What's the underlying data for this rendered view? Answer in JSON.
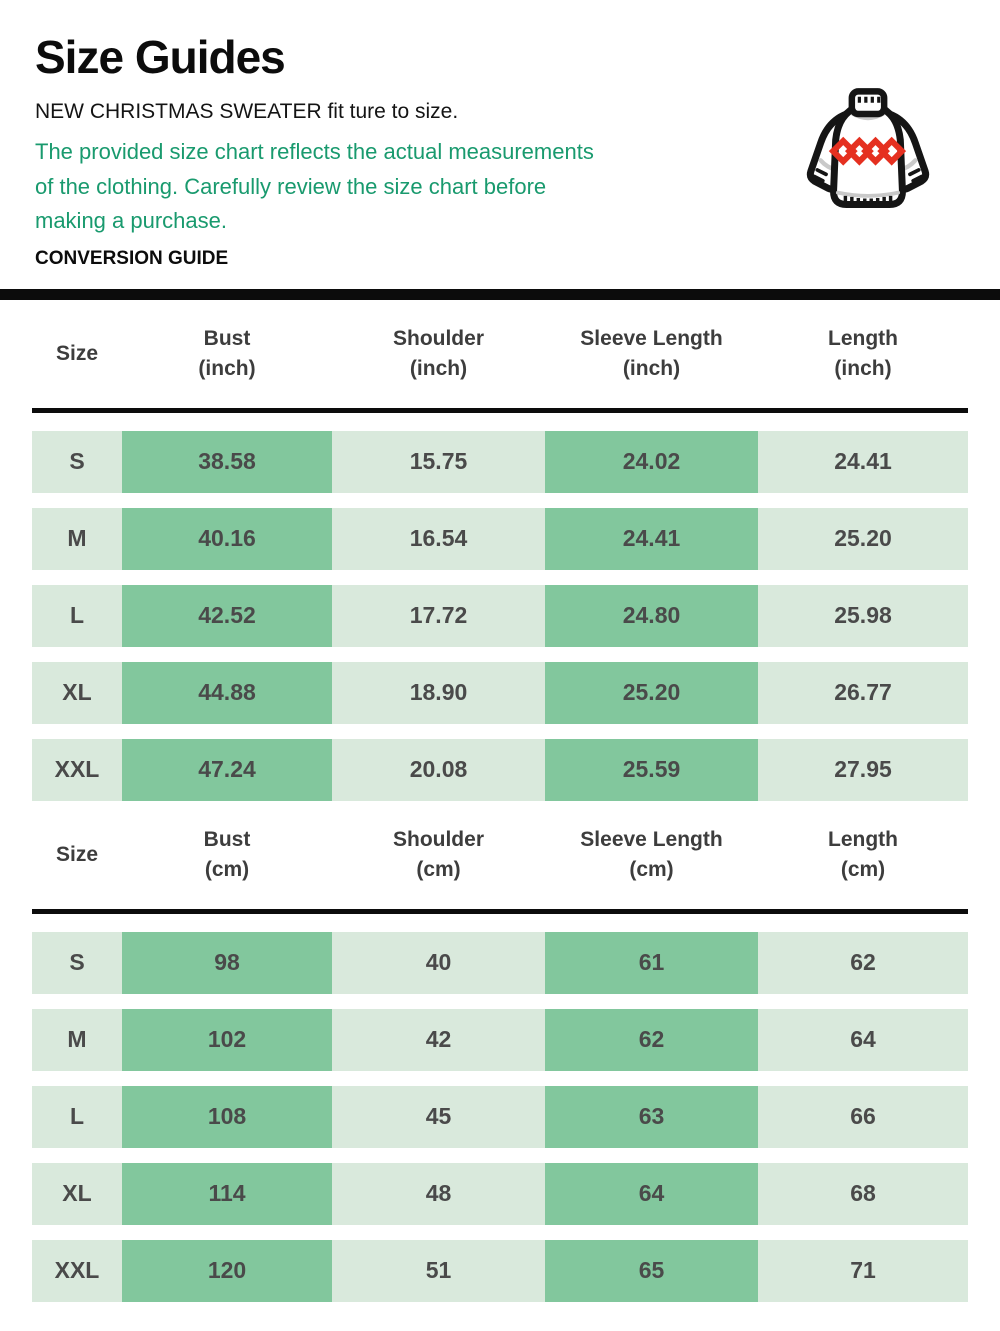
{
  "header": {
    "title": "Size Guides",
    "subtitle": "NEW CHRISTMAS SWEATER fit ture to size.",
    "note": "The provided size chart reflects the actual measurements\nof the clothing. Carefully review the size chart before\nmaking a purchase.",
    "section_label": "CONVERSION GUIDE"
  },
  "icon": {
    "name": "christmas-sweater-icon"
  },
  "colors": {
    "note_green": "#199a6e",
    "cell_dark": "#82c79d",
    "cell_light": "#d9e9dc",
    "divider_black": "#0c0c0c",
    "row_text": "#4a4a4a",
    "header_text": "#3d3d3d",
    "diamond_red": "#e53020",
    "outline_black": "#151515"
  },
  "tables": [
    {
      "id": "inch",
      "columns": [
        {
          "label": "Size",
          "sub": "",
          "shaded": false
        },
        {
          "label": "Bust",
          "sub": "(inch)",
          "shaded": true
        },
        {
          "label": "Shoulder",
          "sub": "(inch)",
          "shaded": false
        },
        {
          "label": "Sleeve Length",
          "sub": "(inch)",
          "shaded": true
        },
        {
          "label": "Length",
          "sub": "(inch)",
          "shaded": false
        }
      ],
      "rows": [
        {
          "size": "S",
          "values": [
            "38.58",
            "15.75",
            "24.02",
            "24.41"
          ]
        },
        {
          "size": "M",
          "values": [
            "40.16",
            "16.54",
            "24.41",
            "25.20"
          ]
        },
        {
          "size": "L",
          "values": [
            "42.52",
            "17.72",
            "24.80",
            "25.98"
          ]
        },
        {
          "size": "XL",
          "values": [
            "44.88",
            "18.90",
            "25.20",
            "26.77"
          ]
        },
        {
          "size": "XXL",
          "values": [
            "47.24",
            "20.08",
            "25.59",
            "27.95"
          ]
        }
      ]
    },
    {
      "id": "cm",
      "columns": [
        {
          "label": "Size",
          "sub": "",
          "shaded": false
        },
        {
          "label": "Bust",
          "sub": "(cm)",
          "shaded": true
        },
        {
          "label": "Shoulder",
          "sub": "(cm)",
          "shaded": false
        },
        {
          "label": "Sleeve Length",
          "sub": "(cm)",
          "shaded": true
        },
        {
          "label": "Length",
          "sub": "(cm)",
          "shaded": false
        }
      ],
      "rows": [
        {
          "size": "S",
          "values": [
            "98",
            "40",
            "61",
            "62"
          ]
        },
        {
          "size": "M",
          "values": [
            "102",
            "42",
            "62",
            "64"
          ]
        },
        {
          "size": "L",
          "values": [
            "108",
            "45",
            "63",
            "66"
          ]
        },
        {
          "size": "XL",
          "values": [
            "114",
            "48",
            "64",
            "68"
          ]
        },
        {
          "size": "XXL",
          "values": [
            "120",
            "51",
            "65",
            "71"
          ]
        }
      ]
    }
  ]
}
